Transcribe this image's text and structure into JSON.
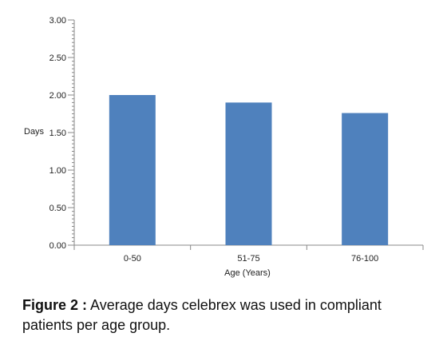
{
  "chart_data": {
    "type": "bar",
    "categories": [
      "0-50",
      "51-75",
      "76-100"
    ],
    "values": [
      2.0,
      1.9,
      1.76
    ],
    "xlabel": "Age (Years)",
    "ylabel": "Days",
    "ylim": [
      0,
      3.0
    ],
    "yticks": [
      "0.00",
      "0.50",
      "1.00",
      "1.50",
      "2.00",
      "2.50",
      "3.00"
    ],
    "bar_color": "#4f81bd",
    "grid": false,
    "legend": "none"
  },
  "caption": {
    "label": "Figure 2 :",
    "text": " Average days celebrex was used in compliant patients per age group."
  }
}
